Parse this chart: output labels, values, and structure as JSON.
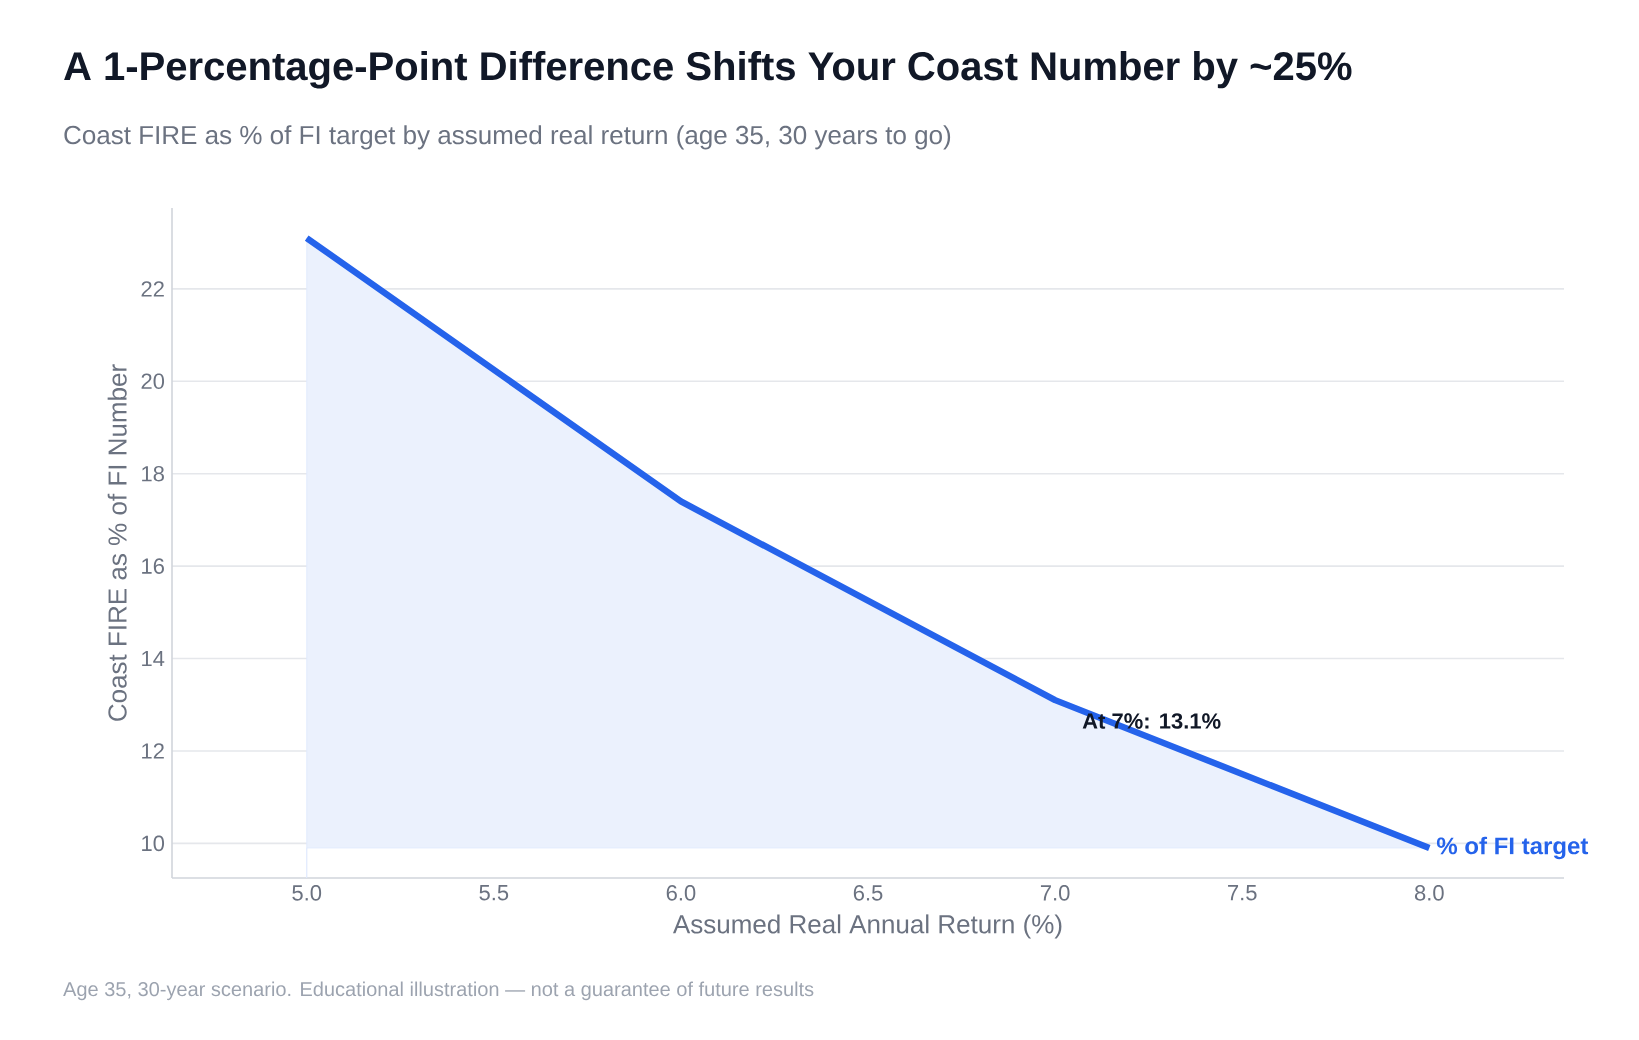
{
  "chart_data": {
    "type": "area",
    "title": "A 1-Percentage-Point Difference Shifts Your Coast Number by ~25%",
    "subtitle": "Coast FIRE as % of FI target by assumed real return (age 35, 30 years to go)",
    "xlabel": "Assumed Real Annual Return (%)",
    "ylabel": "Coast FIRE as % of FI Number",
    "x": [
      5.0,
      6.0,
      7.0,
      8.0
    ],
    "series": [
      {
        "name": "% of FI target",
        "color": "#2563eb",
        "values": [
          23.1,
          17.4,
          13.1,
          9.9
        ]
      }
    ],
    "xlim": [
      4.64,
      8.36
    ],
    "xticks": [
      {
        "value": 5.0,
        "label": "5.0"
      },
      5.5,
      {
        "value": 6.0,
        "label": "6.0"
      },
      6.5,
      {
        "value": 7.0,
        "label": "7.0"
      },
      7.5,
      {
        "value": 8.0,
        "label": "8.0"
      }
    ],
    "ylim": [
      9.25,
      23.75
    ],
    "yticks": [
      10,
      12,
      14,
      16,
      18,
      20,
      22
    ],
    "grid": "y",
    "legend": false,
    "marker": "none",
    "line_style": "solid",
    "annotations": [
      {
        "text": "At 7%: 13.1%",
        "x": 7.0,
        "y": 13.1
      },
      "Age 35, 30-year scenario. Educational illustration — not a guarantee of future results"
    ]
  }
}
